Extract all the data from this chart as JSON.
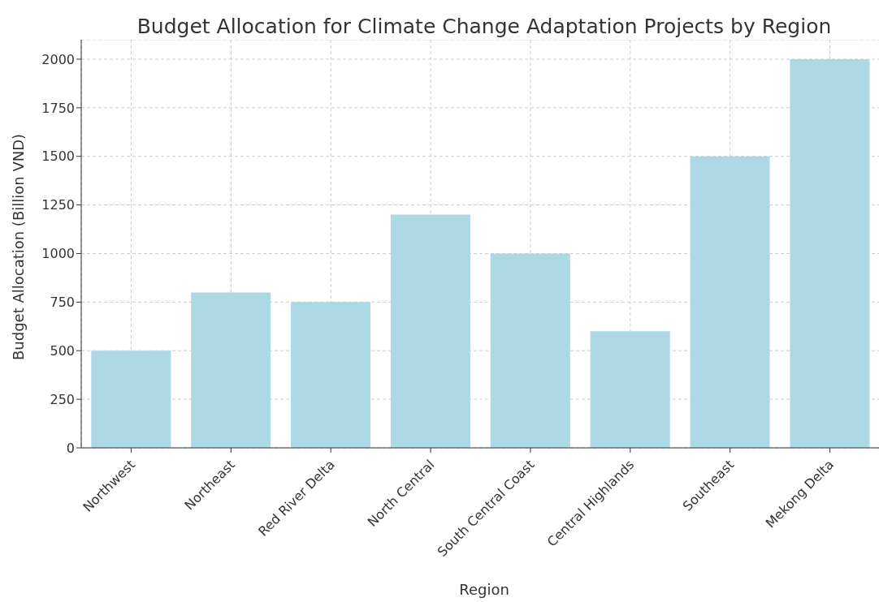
{
  "chart_data": {
    "type": "bar",
    "title": "Budget Allocation for Climate Change Adaptation Projects by Region",
    "xlabel": "Region",
    "ylabel": "Budget Allocation (Billion VND)",
    "categories": [
      "Northwest",
      "Northeast",
      "Red River Delta",
      "North Central",
      "South Central Coast",
      "Central Highlands",
      "Southeast",
      "Mekong Delta"
    ],
    "values": [
      500,
      800,
      750,
      1200,
      1000,
      600,
      1500,
      2000
    ],
    "color": "#add8e6",
    "ylim": [
      0,
      2100
    ],
    "yticks": [
      0,
      250,
      500,
      750,
      1000,
      1250,
      1500,
      1750,
      2000
    ],
    "grid": true
  }
}
